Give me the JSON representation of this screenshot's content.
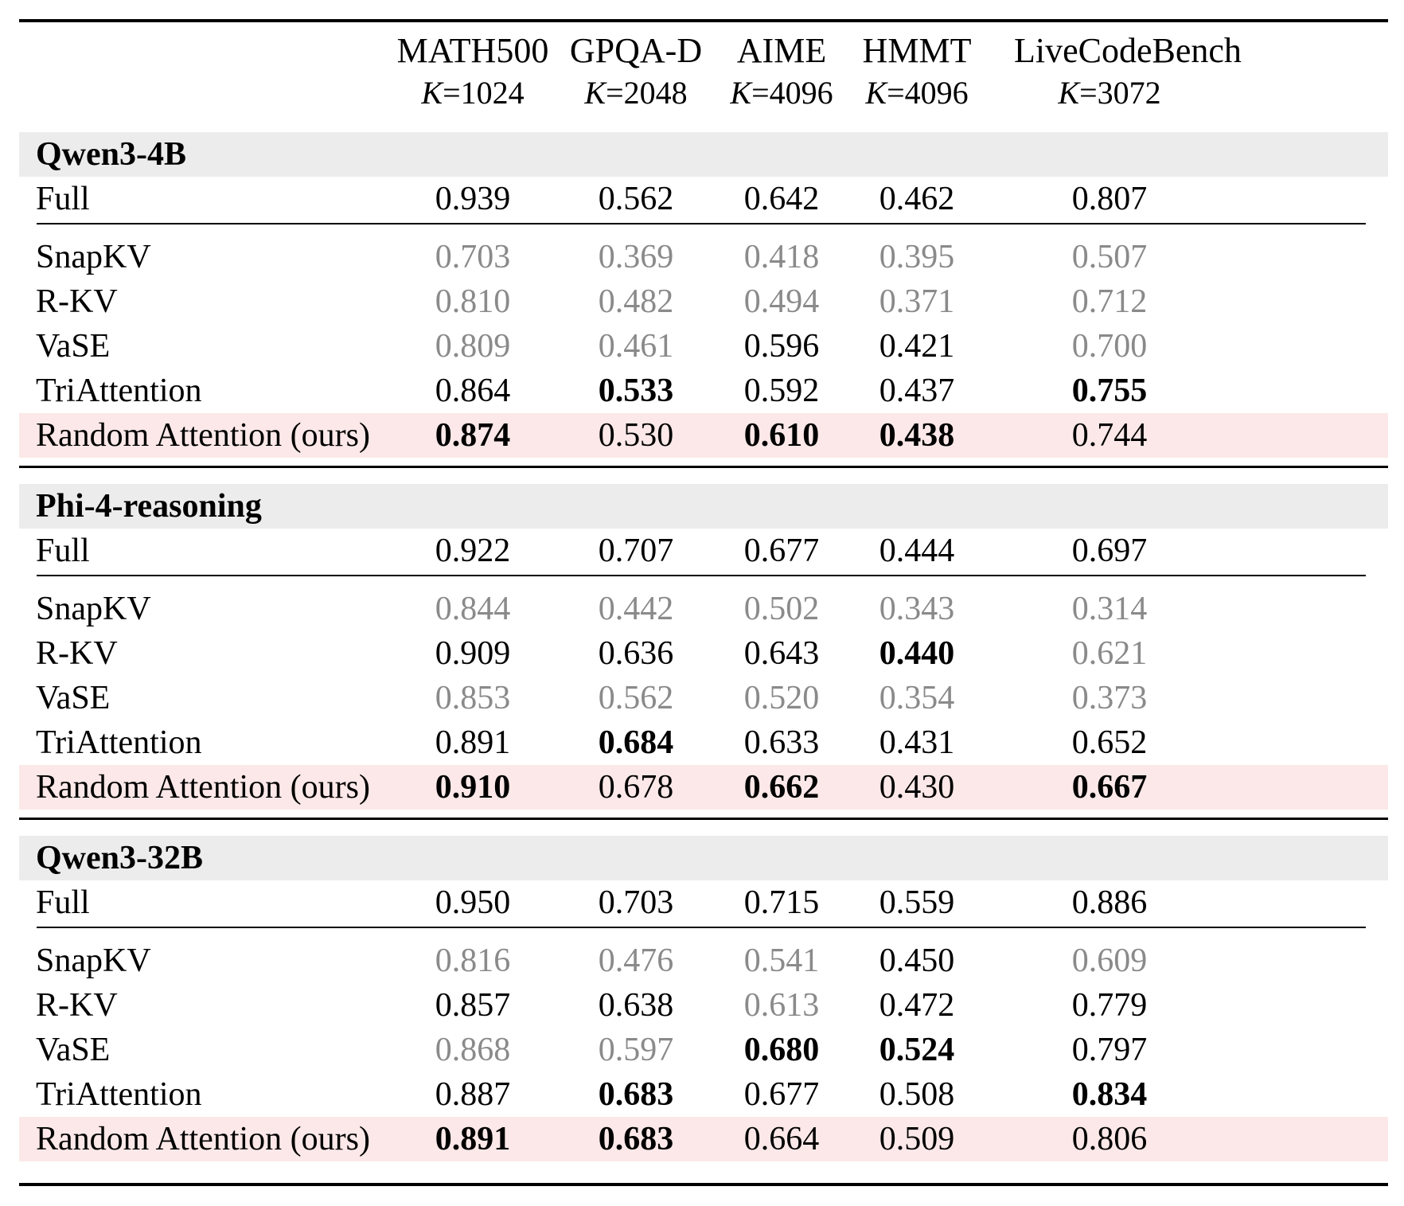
{
  "columns": [
    {
      "name": "MATH500",
      "k_var": "K",
      "k_val": "=1024"
    },
    {
      "name": "GPQA-D",
      "k_var": "K",
      "k_val": "=2048"
    },
    {
      "name": "AIME",
      "k_var": "K",
      "k_val": "=4096"
    },
    {
      "name": "HMMT",
      "k_var": "K",
      "k_val": "=4096"
    },
    {
      "name": "LiveCodeBench",
      "k_var": "K",
      "k_val": "=3072"
    }
  ],
  "groups": [
    {
      "name": "Qwen3-4B",
      "full": {
        "label": "Full",
        "values": [
          "0.939",
          "0.562",
          "0.642",
          "0.462",
          "0.807"
        ]
      },
      "rows": [
        {
          "label": "SnapKV",
          "values": [
            "0.703",
            "0.369",
            "0.418",
            "0.395",
            "0.507"
          ],
          "style": [
            "gray",
            "gray",
            "gray",
            "gray",
            "gray"
          ]
        },
        {
          "label": "R-KV",
          "values": [
            "0.810",
            "0.482",
            "0.494",
            "0.371",
            "0.712"
          ],
          "style": [
            "gray",
            "gray",
            "gray",
            "gray",
            "gray"
          ]
        },
        {
          "label": "VaSE",
          "values": [
            "0.809",
            "0.461",
            "0.596",
            "0.421",
            "0.700"
          ],
          "style": [
            "gray",
            "gray",
            "normal",
            "normal",
            "gray"
          ]
        },
        {
          "label": "TriAttention",
          "values": [
            "0.864",
            "0.533",
            "0.592",
            "0.437",
            "0.755"
          ],
          "style": [
            "normal",
            "bold",
            "normal",
            "normal",
            "bold"
          ]
        },
        {
          "label": "Random Attention (ours)",
          "values": [
            "0.874",
            "0.530",
            "0.610",
            "0.438",
            "0.744"
          ],
          "style": [
            "bold",
            "normal",
            "bold",
            "bold",
            "normal"
          ],
          "highlight": true
        }
      ]
    },
    {
      "name": "Phi-4-reasoning",
      "full": {
        "label": "Full",
        "values": [
          "0.922",
          "0.707",
          "0.677",
          "0.444",
          "0.697"
        ]
      },
      "rows": [
        {
          "label": "SnapKV",
          "values": [
            "0.844",
            "0.442",
            "0.502",
            "0.343",
            "0.314"
          ],
          "style": [
            "gray",
            "gray",
            "gray",
            "gray",
            "gray"
          ]
        },
        {
          "label": "R-KV",
          "values": [
            "0.909",
            "0.636",
            "0.643",
            "0.440",
            "0.621"
          ],
          "style": [
            "normal",
            "normal",
            "normal",
            "bold",
            "gray"
          ]
        },
        {
          "label": "VaSE",
          "values": [
            "0.853",
            "0.562",
            "0.520",
            "0.354",
            "0.373"
          ],
          "style": [
            "gray",
            "gray",
            "gray",
            "gray",
            "gray"
          ]
        },
        {
          "label": "TriAttention",
          "values": [
            "0.891",
            "0.684",
            "0.633",
            "0.431",
            "0.652"
          ],
          "style": [
            "normal",
            "bold",
            "normal",
            "normal",
            "normal"
          ]
        },
        {
          "label": "Random Attention (ours)",
          "values": [
            "0.910",
            "0.678",
            "0.662",
            "0.430",
            "0.667"
          ],
          "style": [
            "bold",
            "normal",
            "bold",
            "normal",
            "bold"
          ],
          "highlight": true
        }
      ]
    },
    {
      "name": "Qwen3-32B",
      "full": {
        "label": "Full",
        "values": [
          "0.950",
          "0.703",
          "0.715",
          "0.559",
          "0.886"
        ]
      },
      "rows": [
        {
          "label": "SnapKV",
          "values": [
            "0.816",
            "0.476",
            "0.541",
            "0.450",
            "0.609"
          ],
          "style": [
            "gray",
            "gray",
            "gray",
            "normal",
            "gray"
          ]
        },
        {
          "label": "R-KV",
          "values": [
            "0.857",
            "0.638",
            "0.613",
            "0.472",
            "0.779"
          ],
          "style": [
            "normal",
            "normal",
            "gray",
            "normal",
            "normal"
          ]
        },
        {
          "label": "VaSE",
          "values": [
            "0.868",
            "0.597",
            "0.680",
            "0.524",
            "0.797"
          ],
          "style": [
            "gray",
            "gray",
            "bold",
            "bold",
            "normal"
          ]
        },
        {
          "label": "TriAttention",
          "values": [
            "0.887",
            "0.683",
            "0.677",
            "0.508",
            "0.834"
          ],
          "style": [
            "normal",
            "bold",
            "normal",
            "normal",
            "bold"
          ]
        },
        {
          "label": "Random Attention (ours)",
          "values": [
            "0.891",
            "0.683",
            "0.664",
            "0.509",
            "0.806"
          ],
          "style": [
            "bold",
            "bold",
            "normal",
            "normal",
            "normal"
          ],
          "highlight": true
        }
      ]
    }
  ]
}
